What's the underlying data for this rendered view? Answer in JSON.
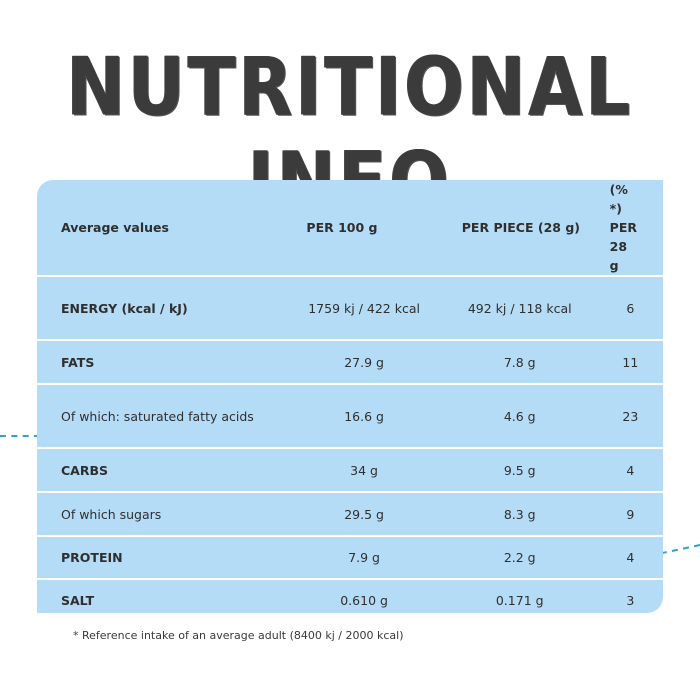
{
  "title": "NUTRITIONAL INFO",
  "table": {
    "headers": [
      "Average values",
      "PER 100 g",
      "PER PIECE (28 g)",
      "(% *) PER 28 g"
    ],
    "rows": [
      {
        "label": "ENERGY (kcal / kJ)",
        "bold": true,
        "per100": "1759 kj / 422 kcal",
        "perPiece": "492 kj / 118 kcal",
        "percent": "6"
      },
      {
        "label": "FATS",
        "bold": true,
        "per100": "27.9 g",
        "perPiece": "7.8 g",
        "percent": "11"
      },
      {
        "label": "Of which: saturated fatty acids",
        "bold": false,
        "per100": "16.6 g",
        "perPiece": "4.6 g",
        "percent": "23"
      },
      {
        "label": "CARBS",
        "bold": true,
        "per100": "34 g",
        "perPiece": "9.5 g",
        "percent": "4"
      },
      {
        "label": "Of which sugars",
        "bold": false,
        "per100": "29.5 g",
        "perPiece": "8.3 g",
        "percent": "9"
      },
      {
        "label": "PROTEIN",
        "bold": true,
        "per100": "7.9 g",
        "perPiece": "2.2 g",
        "percent": "4"
      },
      {
        "label": "SALT",
        "bold": true,
        "per100": "0.610 g",
        "perPiece": "0.171 g",
        "percent": "3"
      }
    ]
  },
  "footnote": "* Reference intake of an average adult (8400 kj / 2000 kcal)",
  "colors": {
    "table_bg": "#b5dcf7",
    "accent": "#2ea3cf",
    "title": "#3b3b3b"
  }
}
